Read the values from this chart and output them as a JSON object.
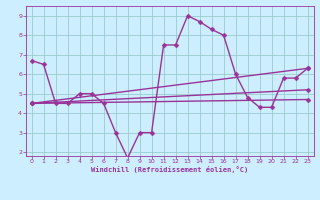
{
  "background_color": "#cceeff",
  "grid_color": "#99cccc",
  "line_color": "#993399",
  "xlim": [
    -0.5,
    23.5
  ],
  "ylim": [
    1.8,
    9.5
  ],
  "xticks": [
    0,
    1,
    2,
    3,
    4,
    5,
    6,
    7,
    8,
    9,
    10,
    11,
    12,
    13,
    14,
    15,
    16,
    17,
    18,
    19,
    20,
    21,
    22,
    23
  ],
  "yticks": [
    2,
    3,
    4,
    5,
    6,
    7,
    8,
    9
  ],
  "xlabel": "Windchill (Refroidissement éolien,°C)",
  "series1": [
    6.7,
    6.5,
    4.5,
    4.5,
    5.0,
    5.0,
    4.5,
    3.0,
    1.7,
    3.0,
    3.0,
    7.5,
    7.5,
    9.0,
    8.7,
    8.3,
    8.0,
    6.0,
    4.8,
    4.3,
    4.3,
    5.8,
    5.8,
    6.3
  ],
  "series2_x": [
    0,
    23
  ],
  "series2_y": [
    4.5,
    4.7
  ],
  "series3_x": [
    0,
    23
  ],
  "series3_y": [
    4.5,
    5.2
  ],
  "series4_x": [
    0,
    23
  ],
  "series4_y": [
    4.5,
    6.3
  ],
  "marker_size": 2.5,
  "line_width": 1.0
}
